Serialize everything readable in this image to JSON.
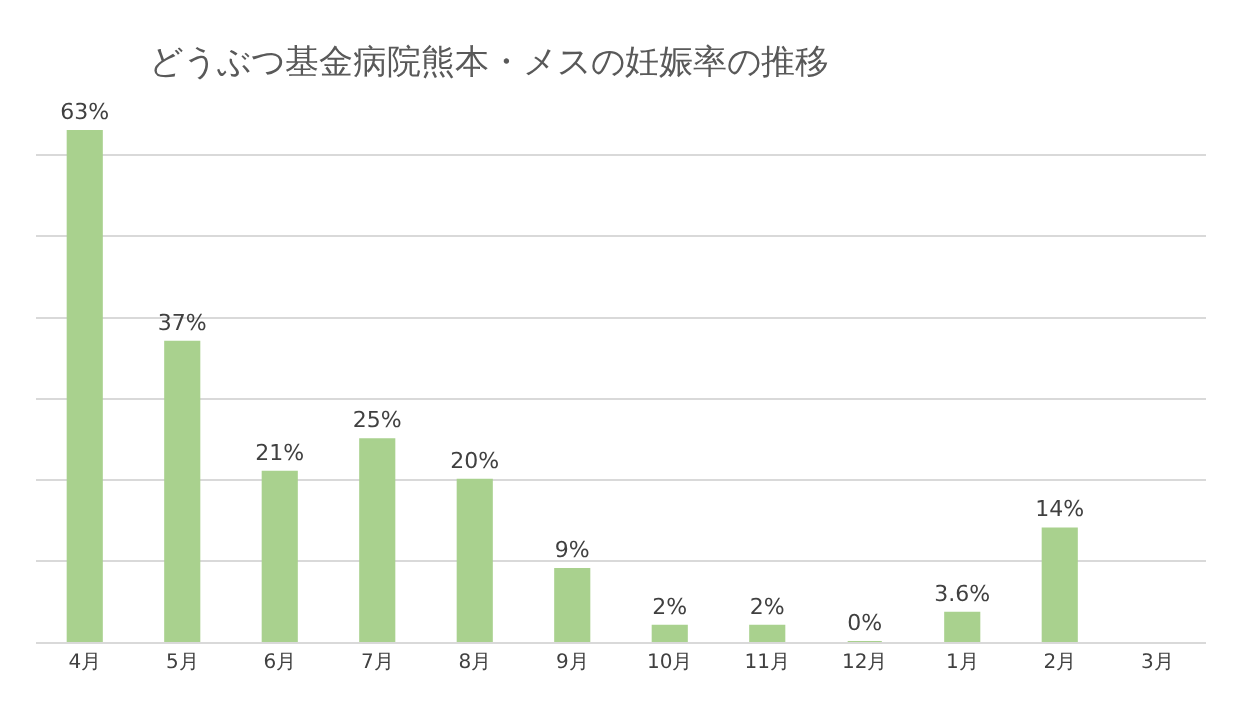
{
  "chart_data": {
    "type": "bar",
    "title": "どうぶつ基金病院熊本・メスの妊娠率の推移",
    "categories": [
      "4月",
      "5月",
      "6月",
      "7月",
      "8月",
      "9月",
      "10月",
      "11月",
      "12月",
      "1月",
      "2月",
      "3月"
    ],
    "values": [
      63,
      37,
      21,
      25,
      20,
      9,
      2,
      2,
      0,
      3.6,
      14,
      null
    ],
    "value_labels": [
      "63%",
      "37%",
      "21%",
      "25%",
      "20%",
      "9%",
      "2%",
      "2%",
      "0%",
      "3.6%",
      "14%",
      null
    ],
    "color": "#a9d18e",
    "yticks": [
      {
        "value": 0,
        "label": null
      },
      {
        "value": 10,
        "label": null
      },
      {
        "value": 20,
        "label": null
      },
      {
        "value": 30,
        "label": null
      },
      {
        "value": 40,
        "label": null
      },
      {
        "value": 50,
        "label": null
      },
      {
        "value": 60,
        "label": null
      }
    ],
    "tick_labels": "x",
    "grid": "y",
    "legend": false
  }
}
